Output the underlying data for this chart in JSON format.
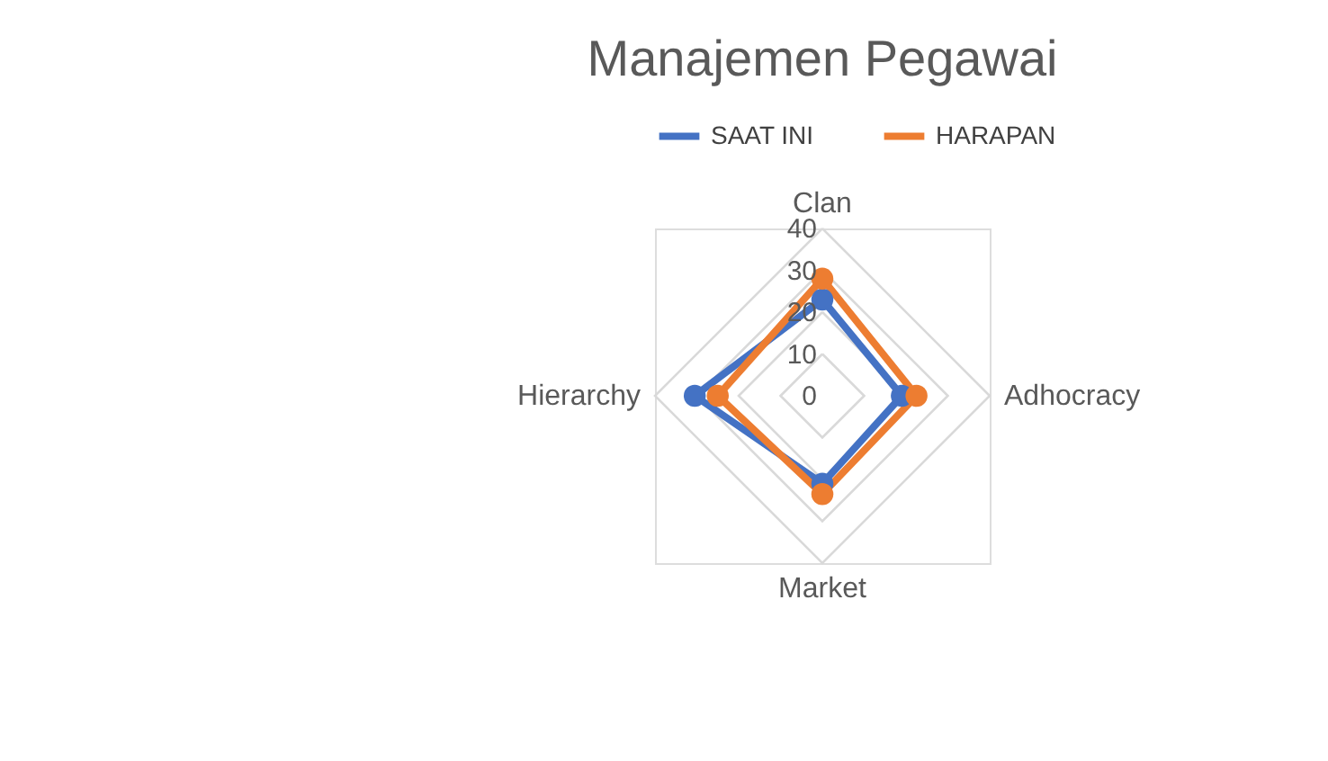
{
  "chart_data": {
    "type": "radar",
    "title": "Manajemen Pegawai",
    "categories": [
      "Clan",
      "Adhocracy",
      "Market",
      "Hierarchy"
    ],
    "series": [
      {
        "name": "SAAT INI",
        "color": "#4472c4",
        "values": [
          23,
          19,
          21,
          30.5
        ]
      },
      {
        "name": "HARAPAN",
        "color": "#ed7d31",
        "values": [
          28,
          22.5,
          23.5,
          25
        ]
      }
    ],
    "ylim": [
      0,
      40
    ],
    "yticks": [
      0,
      10,
      20,
      30,
      40
    ],
    "grid": true,
    "legend": "top",
    "marker": "circle"
  }
}
